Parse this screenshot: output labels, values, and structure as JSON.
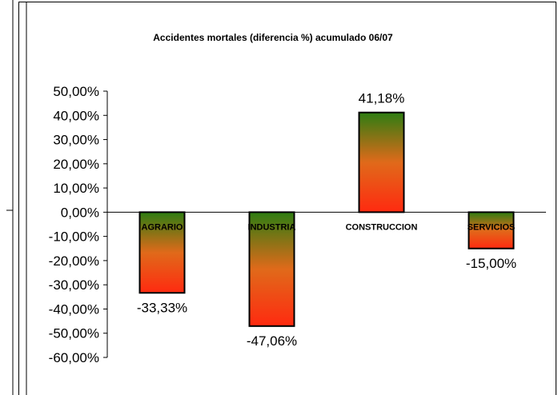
{
  "chart_data": {
    "type": "bar",
    "title": "Accidentes mortales (diferencia %) acumulado 06/07",
    "categories": [
      "AGRARIO",
      "INDUSTRIA",
      "CONSTRUCCION",
      "SERVICIOS"
    ],
    "values": [
      -33.33,
      -47.06,
      41.18,
      -15.0
    ],
    "data_labels": [
      "-33,33%",
      "-47,06%",
      "41,18%",
      "-15,00%"
    ],
    "ylim": [
      -60,
      50
    ],
    "yticks": [
      50,
      40,
      30,
      20,
      10,
      0,
      -10,
      -20,
      -30,
      -40,
      -50,
      -60
    ],
    "ytick_labels": [
      "50,00%",
      "40,00%",
      "30,00%",
      "20,00%",
      "10,00%",
      "0,00%",
      "-10,00%",
      "-20,00%",
      "-30,00%",
      "-40,00%",
      "-50,00%",
      "-60,00%"
    ],
    "grid": false,
    "legend": "none",
    "bar_gradient": {
      "top": "#2e7d12",
      "middle": "#e06a1a",
      "bottom": "#ff2a10"
    }
  }
}
